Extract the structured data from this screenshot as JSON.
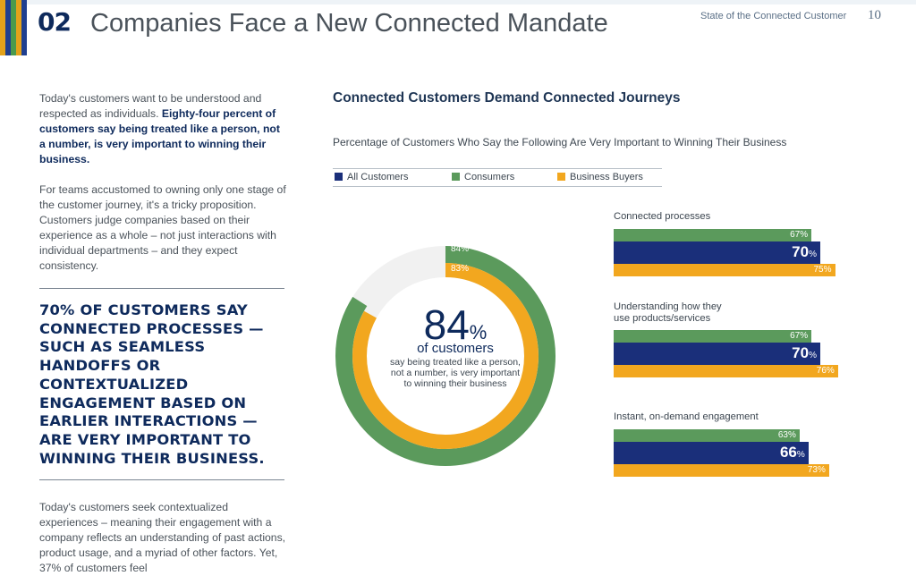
{
  "header": {
    "section_number": "02",
    "section_title": "Companies Face a New Connected Mandate",
    "doc_name": "State of the Connected Customer",
    "page_number": "10",
    "stripe_colors": [
      "#e3a21a",
      "#1f3f8f",
      "#4a9a4c",
      "#e3a21a",
      "#1f3f8f"
    ]
  },
  "body_text": {
    "para1_plain": "Today's customers want to be understood and respected as individuals. ",
    "para1_bold": "Eighty-four percent of customers say being treated like a person, not a number, is very important to winning their business.",
    "para2": "For teams accustomed to owning only one stage of the customer journey, it's a tricky proposition. Customers judge companies based on their experience as a whole – not just interactions with individual departments – and they expect consistency.",
    "callout": "70% of customers say connected processes — such as seamless handoffs or contextualized engagement based on earlier interactions — are very important to winning their business.",
    "para3": "Today's customers seek contextualized experiences – meaning their engagement with a company reflects an understanding of past actions, product usage, and a myriad of other factors. Yet, 37% of customers feel"
  },
  "chart_title": "Connected Customers Demand Connected Journeys",
  "chart_subtitle": "Percentage of Customers Who Say the Following Are Very Important to Winning Their Business",
  "legend": [
    "All Customers",
    "Consumers",
    "Business Buyers"
  ],
  "colors": {
    "all": "#1a2f7a",
    "consumers": "#5b9a5c",
    "business": "#f2a71f",
    "track": "#f1f1f1",
    "navy_text": "#0e2a5c"
  },
  "donut": {
    "big_number": "84",
    "percent_sign": "%",
    "label": "of customers",
    "note": "say being treated like a person, not a number, is very important to winning their business",
    "outer_label": "84%",
    "inner_label": "83%"
  },
  "chart_data": [
    {
      "type": "pie",
      "rings": [
        {
          "name": "Consumers",
          "value": 84
        },
        {
          "name": "Business Buyers",
          "value": 83
        }
      ]
    },
    {
      "type": "bar",
      "categories": [
        "Connected processes",
        "Understanding how they use products/services",
        "Instant, on-demand engagement"
      ],
      "series": [
        {
          "name": "Consumers",
          "values": [
            67,
            67,
            63
          ]
        },
        {
          "name": "All Customers",
          "values": [
            70,
            70,
            66
          ]
        },
        {
          "name": "Business Buyers",
          "values": [
            75,
            76,
            73
          ]
        }
      ]
    }
  ],
  "bars": {
    "unit": "%",
    "groups": [
      {
        "label_lines": [
          "Connected processes"
        ],
        "consumers": "67",
        "all": "70",
        "business": "75"
      },
      {
        "label_lines": [
          "Understanding how they",
          "use products/services"
        ],
        "consumers": "67",
        "all": "70",
        "business": "76"
      },
      {
        "label_lines": [
          "Instant, on-demand engagement"
        ],
        "consumers": "63",
        "all": "66",
        "business": "73"
      }
    ]
  }
}
